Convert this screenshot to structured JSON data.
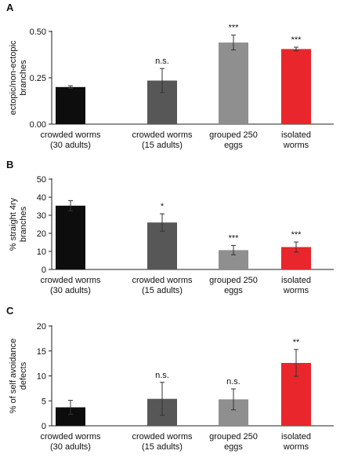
{
  "figure_note": "",
  "chart_data": [
    {
      "type": "bar",
      "panel": "A",
      "ylabel_lines": [
        "ectopic/non-ectopic",
        "branches"
      ],
      "ylim": [
        0,
        0.5
      ],
      "yticks": [
        0,
        0.25,
        0.5
      ],
      "ytick_labels": [
        "0.00",
        "0.25",
        "0.50"
      ],
      "categories": [
        [
          "crowded worms",
          "(30 adults)"
        ],
        [
          "crowded worms",
          "(15 adults)"
        ],
        [
          "grouped 250",
          "eggs"
        ],
        [
          "isolated",
          "worms"
        ]
      ],
      "values": [
        0.2,
        0.235,
        0.44,
        0.405
      ],
      "errors": [
        0.007,
        0.065,
        0.04,
        0.01
      ],
      "significance": [
        "",
        "n.s.",
        "***",
        "***"
      ],
      "colors": [
        "#0d0d0d",
        "#575757",
        "#8f8f8f",
        "#e8262c"
      ]
    },
    {
      "type": "bar",
      "panel": "B",
      "ylabel_lines": [
        "% straight 4ry",
        "branches"
      ],
      "ylim": [
        0,
        50
      ],
      "yticks": [
        0,
        10,
        20,
        30,
        40,
        50
      ],
      "ytick_labels": [
        "0",
        "10",
        "20",
        "30",
        "40",
        "50"
      ],
      "categories": [
        [
          "crowded worms",
          "(30 adults)"
        ],
        [
          "crowded worms",
          "(15 adults)"
        ],
        [
          "grouped 250",
          "eggs"
        ],
        [
          "isolated",
          "worms"
        ]
      ],
      "values": [
        35.3,
        26.0,
        10.7,
        12.4
      ],
      "errors": [
        2.8,
        4.8,
        2.6,
        2.8
      ],
      "significance": [
        "",
        "*",
        "***",
        "***"
      ],
      "colors": [
        "#0d0d0d",
        "#575757",
        "#8f8f8f",
        "#e8262c"
      ]
    },
    {
      "type": "bar",
      "panel": "C",
      "ylabel_lines": [
        "% of self avoidance",
        "defects"
      ],
      "ylim": [
        0,
        20
      ],
      "yticks": [
        0,
        5,
        10,
        15,
        20
      ],
      "ytick_labels": [
        "0",
        "5",
        "10",
        "15",
        "20"
      ],
      "categories": [
        [
          "crowded worms",
          "(30 adults)"
        ],
        [
          "crowded worms",
          "(15 adults)"
        ],
        [
          "grouped 250",
          "eggs"
        ],
        [
          "isolated",
          "worms"
        ]
      ],
      "values": [
        3.7,
        5.4,
        5.3,
        12.6
      ],
      "errors": [
        1.4,
        3.3,
        2.1,
        2.7
      ],
      "significance": [
        "",
        "n.s.",
        "n.s.",
        "**"
      ],
      "colors": [
        "#0d0d0d",
        "#575757",
        "#8f8f8f",
        "#e8262c"
      ]
    }
  ]
}
